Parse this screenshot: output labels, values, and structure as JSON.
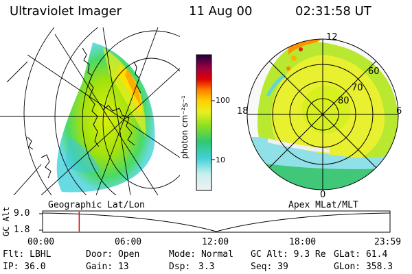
{
  "header": {
    "title": "Ultraviolet Imager",
    "date": "11 Aug 00",
    "time": "02:31:58 UT"
  },
  "colorbar": {
    "unit_label": "photon cm⁻²s⁻¹",
    "tick_100": "100",
    "tick_10": "10"
  },
  "left_panel": {
    "label": "Geographic Lat/Lon"
  },
  "right_panel": {
    "label": "Apex  MLat/MLT",
    "mlt_12": "12",
    "mlt_18": "18",
    "mlt_6": "6",
    "mlt_0": "0",
    "lat_60": "60",
    "lat_70": "70",
    "lat_80": "80"
  },
  "orbit_plot": {
    "axis_label": "GC Alt",
    "y_top": "9.0",
    "y_bottom": "1.8",
    "x_ticks": [
      "00:00",
      "06:00",
      "12:00",
      "18:00",
      "23:59"
    ],
    "current_time_marker_hours": 2.53
  },
  "info": {
    "flt": "Flt: LBHL",
    "ip": "IP: 36.0",
    "door": "Door: Open",
    "gain": "Gain: 13",
    "mode": "Mode: Normal",
    "dsp_label": "Dsp:",
    "dsp_value": "3.3",
    "gcalt": "GC Alt: 9.3 Re",
    "seq": "Seq: 39",
    "glat": "GLat:  61.4",
    "glon": "GLon: 358.3"
  },
  "colors": {
    "background": "#ffffff",
    "marker": "#e00000",
    "grid": "#000000"
  }
}
